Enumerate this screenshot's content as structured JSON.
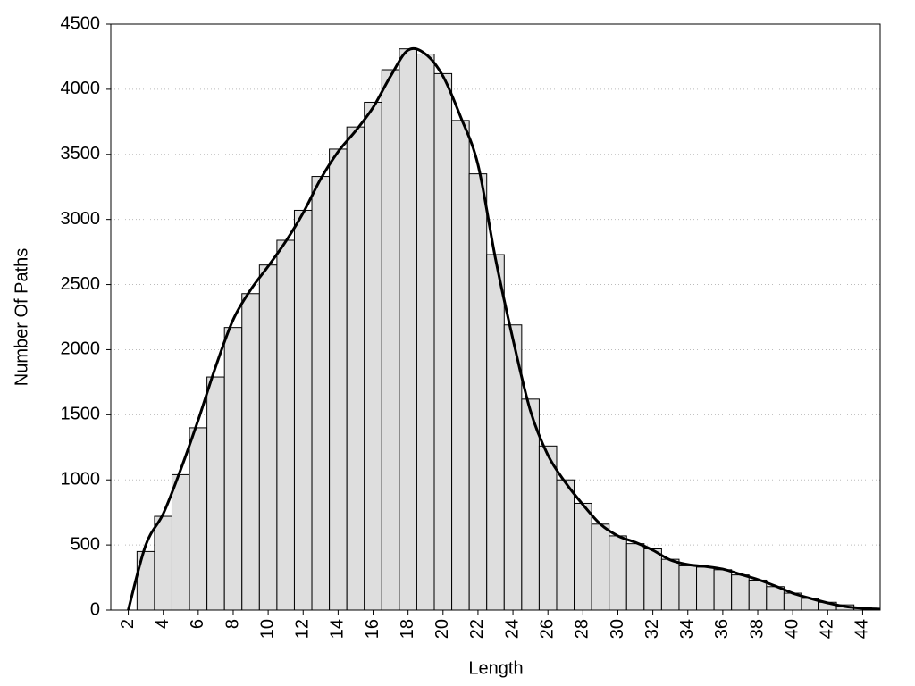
{
  "chart_data": {
    "type": "histogram",
    "x_label": "Length",
    "y_label": "Number Of Paths",
    "bins": [
      2.5,
      3.5,
      4.5,
      5.5,
      6.5,
      7.5,
      8.5,
      9.5,
      10.5,
      11.5,
      12.5,
      13.5,
      14.5,
      15.5,
      16.5,
      17.5,
      18.5,
      19.5,
      20.5,
      21.5,
      22.5,
      23.5,
      24.5,
      25.5,
      26.5,
      27.5,
      28.5,
      29.5,
      30.5,
      31.5,
      32.5,
      33.5,
      34.5,
      35.5,
      36.5,
      37.5,
      38.5,
      39.5,
      40.5,
      41.5,
      42.5,
      43.5,
      44.5
    ],
    "counts": [
      450,
      720,
      1040,
      1400,
      1790,
      2170,
      2430,
      2650,
      2840,
      3070,
      3330,
      3540,
      3710,
      3900,
      4150,
      4310,
      4270,
      4120,
      3760,
      3350,
      2730,
      2190,
      1620,
      1260,
      1000,
      820,
      660,
      570,
      510,
      470,
      390,
      340,
      330,
      310,
      270,
      230,
      180,
      130,
      90,
      60,
      40,
      20
    ],
    "color": "#dedede",
    "line": {
      "x": [
        2,
        3,
        4,
        5,
        6,
        7,
        8,
        9,
        10,
        11,
        12,
        13,
        14,
        15,
        16,
        17,
        18,
        19,
        20,
        21,
        22,
        23,
        24,
        25,
        26,
        27,
        28,
        29,
        30,
        31,
        32,
        33,
        34,
        35,
        36,
        37,
        38,
        39,
        40,
        41,
        42,
        43,
        44,
        45
      ],
      "values": [
        0,
        500,
        740,
        1080,
        1460,
        1870,
        2230,
        2460,
        2640,
        2830,
        3050,
        3310,
        3520,
        3680,
        3860,
        4100,
        4300,
        4270,
        4100,
        3790,
        3420,
        2700,
        2080,
        1530,
        1190,
        980,
        810,
        660,
        570,
        520,
        460,
        385,
        350,
        335,
        315,
        275,
        235,
        185,
        130,
        90,
        55,
        27,
        14,
        7
      ],
      "color": "#000000"
    },
    "xlim": [
      1,
      45
    ],
    "ylim": [
      0,
      4500
    ],
    "xticks": [
      2,
      4,
      6,
      8,
      10,
      12,
      14,
      16,
      18,
      20,
      22,
      24,
      26,
      28,
      30,
      32,
      34,
      36,
      38,
      40,
      42,
      44
    ],
    "yticks": [
      0,
      500,
      1000,
      1500,
      2000,
      2500,
      3000,
      3500,
      4000,
      4500
    ],
    "grid": true
  }
}
